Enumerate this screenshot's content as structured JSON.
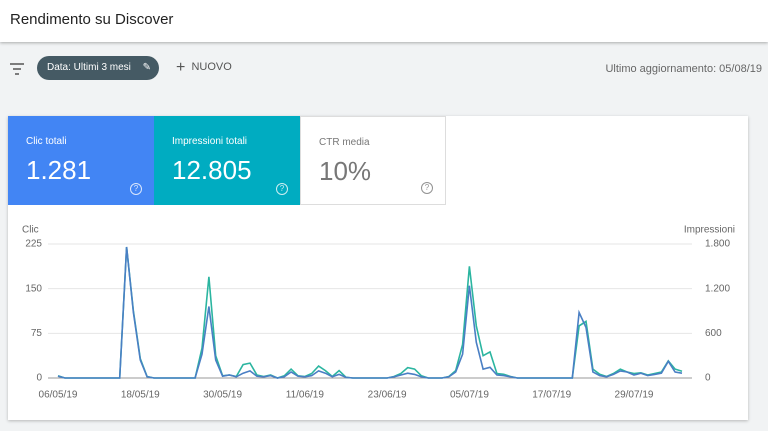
{
  "header": {
    "title": "Rendimento su Discover"
  },
  "toolbar": {
    "date_chip": "Data: Ultimi 3 mesi",
    "new_button": "NUOVO",
    "last_update": "Ultimo aggiornamento: 05/08/19"
  },
  "metrics": [
    {
      "label": "Clic totali",
      "value": "1.281"
    },
    {
      "label": "Impressioni totali",
      "value": "12.805"
    },
    {
      "label": "CTR media",
      "value": "10%"
    }
  ],
  "chart_data": {
    "type": "line",
    "y_label": "Clic",
    "y2_label": "Impressioni",
    "categories": [
      "06/05/19",
      null,
      null,
      null,
      null,
      null,
      null,
      null,
      null,
      null,
      null,
      null,
      "18/05/19",
      null,
      null,
      null,
      null,
      null,
      null,
      null,
      null,
      null,
      null,
      null,
      "30/05/19",
      null,
      null,
      null,
      null,
      null,
      null,
      null,
      null,
      null,
      null,
      null,
      "11/06/19",
      null,
      null,
      null,
      null,
      null,
      null,
      null,
      null,
      null,
      null,
      null,
      "23/06/19",
      null,
      null,
      null,
      null,
      null,
      null,
      null,
      null,
      null,
      null,
      null,
      "05/07/19",
      null,
      null,
      null,
      null,
      null,
      null,
      null,
      null,
      null,
      null,
      null,
      "17/07/19",
      null,
      null,
      null,
      null,
      null,
      null,
      null,
      null,
      null,
      null,
      null,
      "29/07/19",
      null,
      null,
      null,
      null,
      null,
      null,
      null
    ],
    "series": [
      {
        "name": "Clic",
        "color": "#4a7fc4",
        "axis": "y",
        "values": [
          3,
          0,
          0,
          0,
          0,
          0,
          0,
          0,
          0,
          0,
          220,
          110,
          30,
          2,
          0,
          0,
          0,
          0,
          0,
          0,
          0,
          40,
          120,
          30,
          3,
          5,
          2,
          8,
          12,
          3,
          2,
          4,
          0,
          2,
          10,
          3,
          2,
          4,
          12,
          8,
          2,
          6,
          1,
          0,
          0,
          0,
          0,
          0,
          0,
          2,
          5,
          8,
          6,
          2,
          0,
          0,
          0,
          2,
          10,
          40,
          155,
          60,
          15,
          18,
          5,
          4,
          2,
          0,
          0,
          0,
          0,
          0,
          0,
          0,
          0,
          0,
          110,
          85,
          10,
          4,
          2,
          6,
          12,
          10,
          5,
          8,
          4,
          6,
          8,
          28,
          10,
          8
        ]
      },
      {
        "name": "Impressioni",
        "color": "#2bb5a0",
        "axis": "y2",
        "values": [
          30,
          0,
          0,
          0,
          0,
          0,
          0,
          0,
          0,
          0,
          1760,
          900,
          260,
          20,
          0,
          0,
          0,
          0,
          0,
          0,
          0,
          400,
          1360,
          300,
          30,
          40,
          20,
          180,
          200,
          40,
          20,
          40,
          0,
          30,
          120,
          30,
          20,
          60,
          160,
          100,
          20,
          100,
          10,
          0,
          0,
          0,
          0,
          0,
          0,
          20,
          60,
          140,
          120,
          30,
          0,
          0,
          0,
          20,
          100,
          450,
          1500,
          700,
          300,
          350,
          60,
          50,
          20,
          0,
          0,
          0,
          0,
          0,
          0,
          0,
          0,
          0,
          700,
          760,
          120,
          50,
          20,
          60,
          120,
          80,
          60,
          70,
          40,
          60,
          80,
          230,
          120,
          90
        ]
      }
    ],
    "ylim": [
      0,
      225
    ],
    "yticks": [
      0,
      75,
      150,
      225
    ],
    "y2lim": [
      0,
      1800
    ],
    "y2ticks": [
      0,
      600,
      {
        "value": 1200,
        "label": "1.200"
      },
      {
        "value": 1800,
        "label": "1.800"
      }
    ],
    "grid": true
  }
}
